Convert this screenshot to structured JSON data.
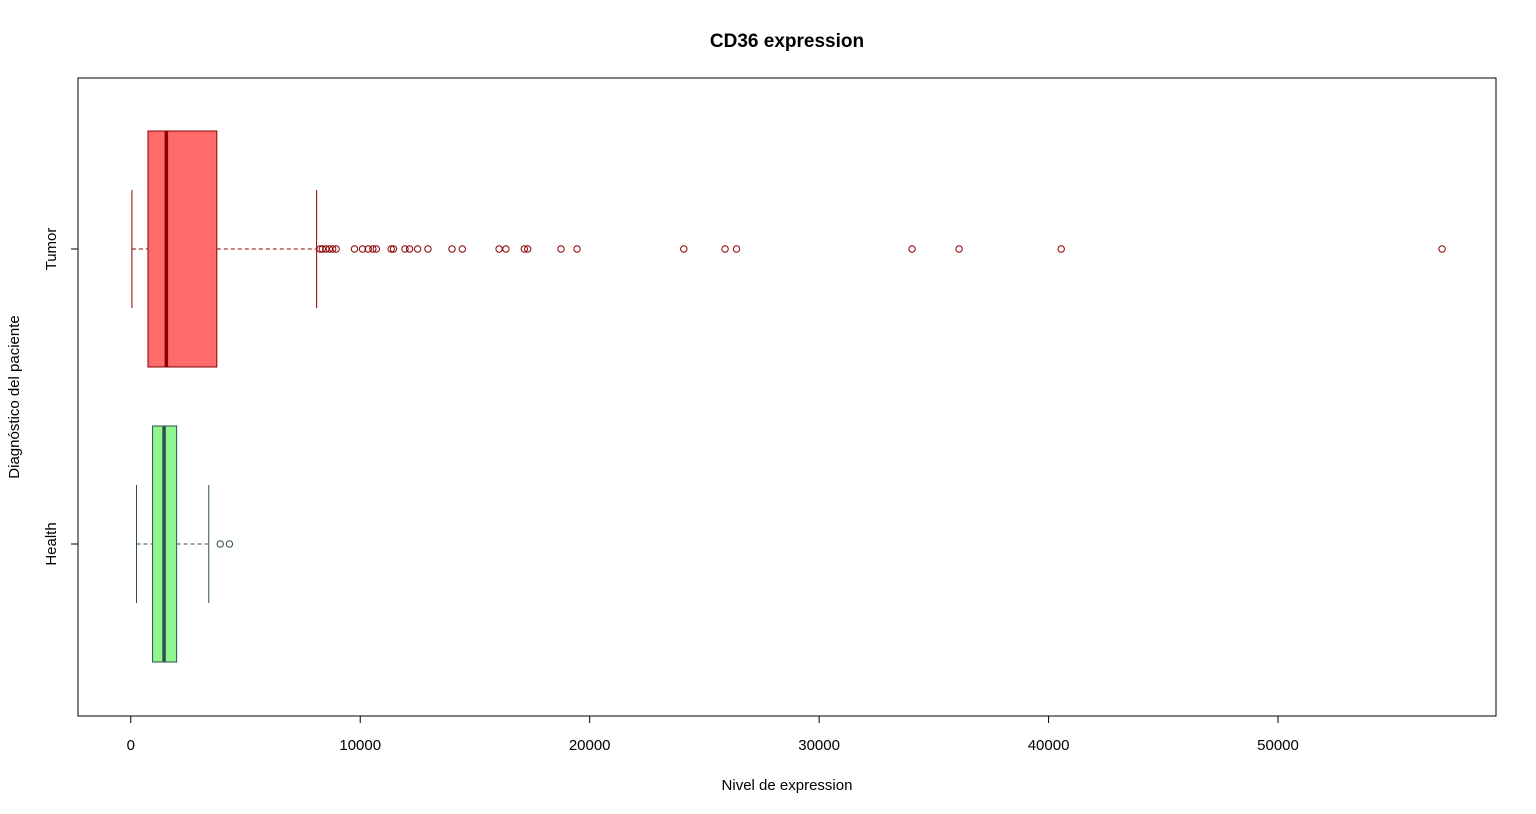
{
  "chart_data": {
    "type": "boxplot",
    "orientation": "horizontal",
    "title": "CD36 expression",
    "xlabel": "Nivel de expression",
    "ylabel": "Diagnóstico del paciente",
    "xlim": [
      -2300,
      59500
    ],
    "x_ticks": [
      0,
      10000,
      20000,
      30000,
      40000,
      50000
    ],
    "x_tick_labels": [
      "0",
      "10000",
      "20000",
      "30000",
      "40000",
      "50000"
    ],
    "grid": false,
    "legend": "none",
    "groups": [
      {
        "label": "Health",
        "fill": "#90f690",
        "line_color": "#2f4f4f",
        "whisker_low": 250,
        "q1": 950,
        "median": 1450,
        "q3": 2000,
        "whisker_high": 3400,
        "outliers": [
          3900,
          4300
        ]
      },
      {
        "label": "Tumor",
        "fill": "#ff6b6b",
        "line_color": "#8b0000",
        "whisker_low": 50,
        "q1": 750,
        "median": 1550,
        "q3": 3750,
        "whisker_high": 8100,
        "outliers": [
          8250,
          8350,
          8500,
          8650,
          8800,
          8950,
          9750,
          10100,
          10350,
          10550,
          10700,
          11350,
          11450,
          11950,
          12150,
          12500,
          12950,
          14000,
          14450,
          16050,
          16350,
          17150,
          17300,
          18750,
          19450,
          24100,
          25900,
          26400,
          34050,
          36100,
          40550,
          57150
        ]
      }
    ]
  }
}
